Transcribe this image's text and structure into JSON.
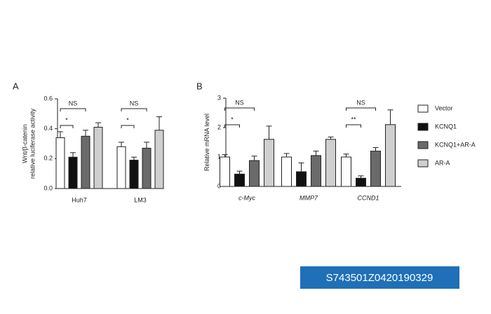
{
  "chart_data": [
    {
      "type": "bar",
      "panel": "A",
      "ylabel": [
        "Wnt/β-catenin",
        "relative luciferase activity"
      ],
      "categories": [
        "Huh7",
        "LM3"
      ],
      "series": [
        {
          "color": "#ffffff",
          "values": [
            0.34,
            0.28
          ],
          "errors": [
            0.04,
            0.03
          ]
        },
        {
          "color": "#111111",
          "values": [
            0.21,
            0.19
          ],
          "errors": [
            0.03,
            0.02
          ]
        },
        {
          "color": "#6a6a6a",
          "values": [
            0.35,
            0.27
          ],
          "errors": [
            0.04,
            0.04
          ]
        },
        {
          "color": "#cfcfcf",
          "values": [
            0.41,
            0.39
          ],
          "errors": [
            0.03,
            0.09
          ]
        }
      ],
      "ylim": [
        0,
        0.6
      ],
      "yticks": [
        {
          "value": 0,
          "label": "0.0"
        },
        0.2,
        0.4,
        0.6
      ],
      "annotations": [
        {
          "category": 0,
          "from": 0,
          "to": 2,
          "label": "NS"
        },
        {
          "category": 0,
          "from": 0,
          "to": 1,
          "label": "*"
        },
        {
          "category": 1,
          "from": 0,
          "to": 2,
          "label": "NS"
        },
        {
          "category": 1,
          "from": 0,
          "to": 1,
          "label": "*"
        }
      ]
    },
    {
      "type": "bar",
      "panel": "B",
      "ylabel": [
        "Relative mRNA level"
      ],
      "categories": [
        "c-Myc",
        "MMP7",
        "CCND1"
      ],
      "series": [
        {
          "name": "Vector",
          "color": "#ffffff",
          "values": [
            1.0,
            1.0,
            1.0
          ],
          "errors": [
            0.08,
            0.12,
            0.1
          ]
        },
        {
          "name": "KCNQ1",
          "color": "#111111",
          "values": [
            0.42,
            0.5,
            0.28
          ],
          "errors": [
            0.1,
            0.3,
            0.08
          ]
        },
        {
          "name": "KCNQ1+AR-A",
          "color": "#6a6a6a",
          "values": [
            0.88,
            1.05,
            1.2
          ],
          "errors": [
            0.15,
            0.15,
            0.12
          ]
        },
        {
          "name": "AR-A",
          "color": "#cfcfcf",
          "values": [
            1.6,
            1.6,
            2.1
          ],
          "errors": [
            0.45,
            0.08,
            0.5
          ]
        }
      ],
      "ylim": [
        0,
        3
      ],
      "yticks": [
        0,
        1,
        2,
        3
      ],
      "annotations": [
        {
          "category": 0,
          "from": 0,
          "to": 2,
          "label": "NS"
        },
        {
          "category": 0,
          "from": 0,
          "to": 1,
          "label": "*"
        },
        {
          "category": 2,
          "from": 0,
          "to": 2,
          "label": "NS"
        },
        {
          "category": 2,
          "from": 0,
          "to": 1,
          "label": "**"
        }
      ]
    }
  ],
  "footer": "S743501Z0420190329"
}
